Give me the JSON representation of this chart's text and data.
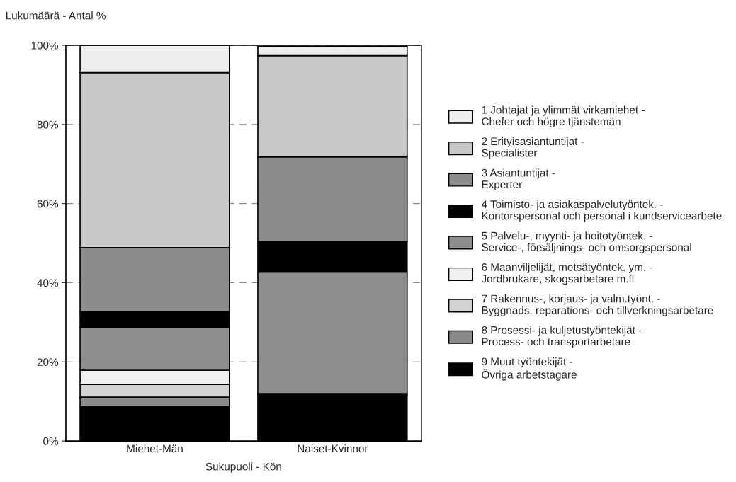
{
  "chart_data": {
    "type": "bar",
    "stacked": true,
    "ylabel": "Lukumäärä - Antal %",
    "xlabel": "Sukupuoli - Kön",
    "categories": [
      "Miehet-Män",
      "Naiset-Kvinnor"
    ],
    "series": [
      {
        "name": "9 Muut työntekijät -\nÖvriga arbetstagare",
        "color": "#000000",
        "values": [
          8.7,
          11.7
        ]
      },
      {
        "name": "8 Prosessi- ja kuljetustyöntekijät -\nProcess- och transportarbetare",
        "color": "#8a8a8a",
        "values": [
          2.4,
          0.3
        ]
      },
      {
        "name": "7 Rakennus-, korjaus- ja valm.työnt. -\nByggnads, reparations- och tillverkningsarbetare",
        "color": "#d2d2d2",
        "values": [
          3.2,
          null
        ]
      },
      {
        "name": "6 Maanviljelijät, metsätyöntek. ym. -\nJordbrukare, skogsarbetare m.fl",
        "color": "#f0f0f0",
        "values": [
          3.6,
          null
        ]
      },
      {
        "name": "5 Palvelu-, myynti- ja hoitotyöntek. -\nService-, försäljnings- och omsorgspersonal",
        "color": "#8e8e8e",
        "values": [
          10.7,
          30.7
        ]
      },
      {
        "name": "4 Toimisto- ja asiakaspalvelutyöntek. -\nKontorspersonal och personal i kundservicearbete",
        "color": "#000000",
        "values": [
          4.1,
          7.7
        ]
      },
      {
        "name": "3 Asiantuntijat -\nExperter",
        "color": "#8c8c8c",
        "values": [
          16.2,
          21.4
        ]
      },
      {
        "name": "2 Erityisasiantuntijat -\nSpecialister",
        "color": "#c8c8c8",
        "values": [
          44.2,
          25.6
        ]
      },
      {
        "name": "1 Johtajat ja ylimmät virkamiehet -\nChefer och högre tjänstemän",
        "color": "#eeeeee",
        "values": [
          6.9,
          2.3
        ]
      }
    ],
    "ylim": [
      0,
      100
    ],
    "yticks": [
      {
        "value": 0,
        "label": "0%"
      },
      {
        "value": 20,
        "label": "20%"
      },
      {
        "value": 40,
        "label": "40%"
      },
      {
        "value": 60,
        "label": "60%"
      },
      {
        "value": 80,
        "label": "80%"
      },
      {
        "value": 100,
        "label": "100%"
      }
    ],
    "grid": "y",
    "legend": "right"
  }
}
